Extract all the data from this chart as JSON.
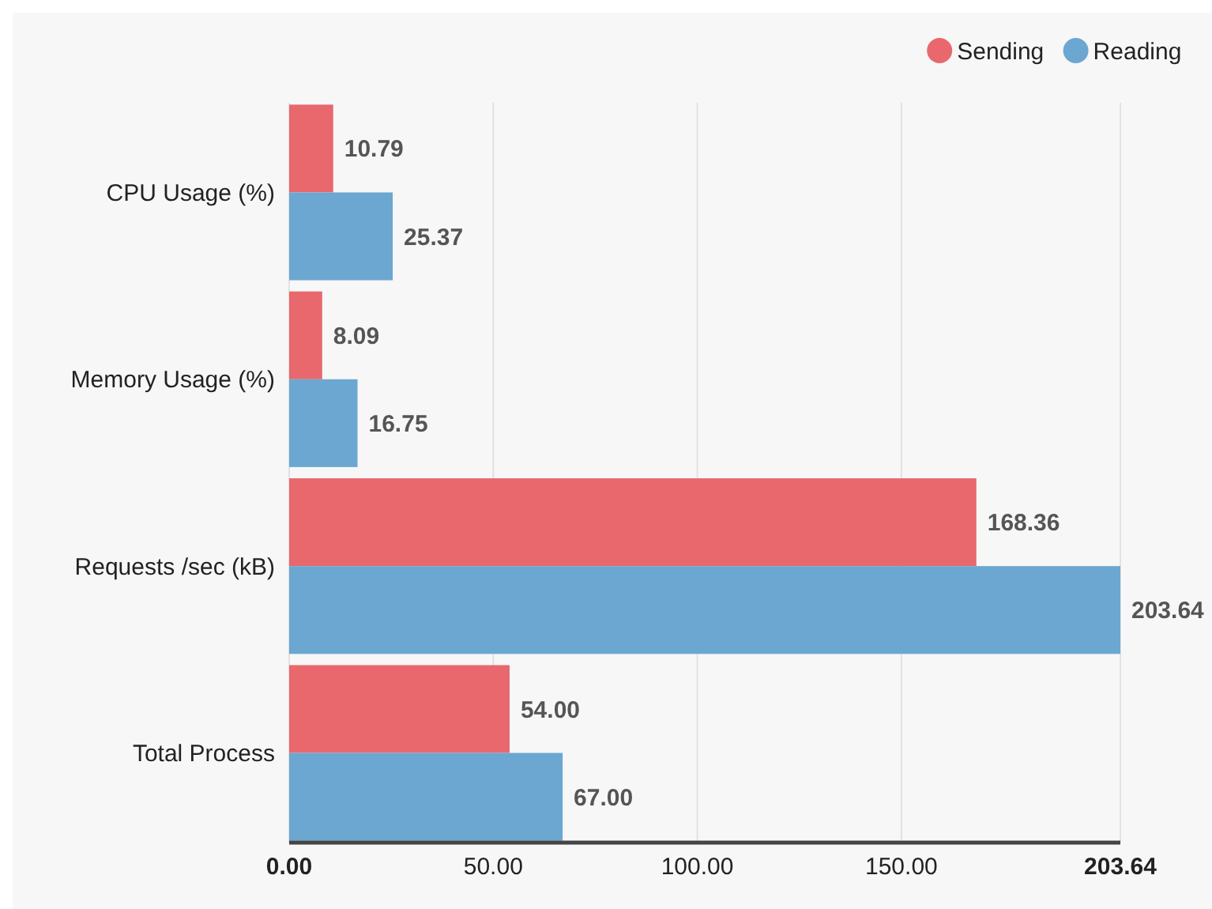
{
  "chart_data": {
    "type": "bar",
    "orientation": "horizontal",
    "categories": [
      "CPU Usage (%)",
      "Memory Usage (%)",
      "Requests /sec (kB)",
      "Total Process"
    ],
    "series": [
      {
        "name": "Sending",
        "color": "#e8686e",
        "values": [
          10.79,
          8.09,
          168.36,
          54.0
        ]
      },
      {
        "name": "Reading",
        "color": "#6ba7d1",
        "values": [
          25.37,
          16.75,
          203.64,
          67.0
        ]
      }
    ],
    "value_labels": [
      [
        "10.79",
        "8.09",
        "168.36",
        "54.00"
      ],
      [
        "25.37",
        "16.75",
        "203.64",
        "67.00"
      ]
    ],
    "xlim": [
      0,
      203.64
    ],
    "xticks": [
      {
        "value": 0,
        "label": "0.00"
      },
      {
        "value": 50,
        "label": "50.00"
      },
      {
        "value": 100,
        "label": "100.00"
      },
      {
        "value": 150,
        "label": "150.00"
      },
      {
        "value": 203.64,
        "label": "203.64"
      }
    ],
    "grid": "x",
    "legend": "top right"
  }
}
